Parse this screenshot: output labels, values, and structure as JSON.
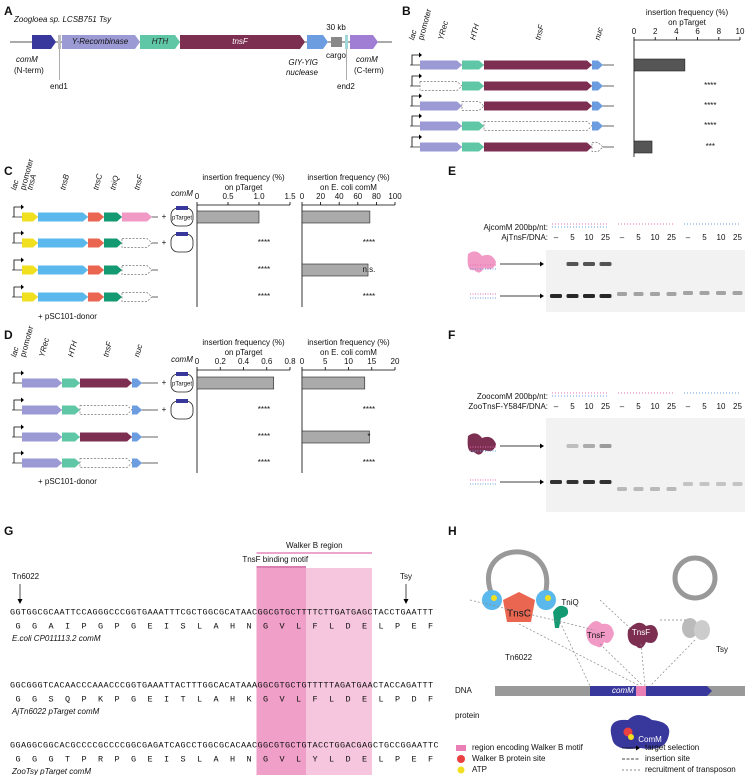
{
  "panel_labels": [
    "A",
    "B",
    "C",
    "D",
    "E",
    "F",
    "G",
    "H"
  ],
  "panel_a": {
    "title": "Zoogloea sp. LCSB751 Tsy",
    "genes": [
      "Y-Recombinase",
      "HTH",
      "tnsF"
    ],
    "cargo_size": "30 kb",
    "cargo": "cargo",
    "nuclease": [
      "GIY-YIG",
      "nuclease"
    ],
    "comm_n": [
      "comM",
      "(N-term)"
    ],
    "end1": "end1",
    "end2": "end2",
    "comm_c": [
      "comM",
      "(C-term)"
    ]
  },
  "panel_b": {
    "promoter": [
      "lac",
      "promoter"
    ],
    "genes": [
      "YRec",
      "HTH",
      "tnsF",
      "nuc"
    ]
  },
  "panel_c": {
    "promoter": [
      "lac",
      "promoter"
    ],
    "genes": [
      "tnsA",
      "tnsB",
      "tnsC",
      "tniQ",
      "tnsF"
    ],
    "plus": "+",
    "target": "comM",
    "plasmid": "pTarget",
    "donor": "+ pSC101-donor"
  },
  "panel_d": {
    "promoter": [
      "lac",
      "promoter"
    ],
    "genes": [
      "YRec",
      "HTH",
      "tnsF",
      "nuc"
    ],
    "plus": "+",
    "target": "comM",
    "plasmid": "pTarget",
    "donor": "+ pSC101-donor"
  },
  "panel_e": {
    "probe": "AjcomM 200bp/nt:",
    "ratio": "AjTnsF/DNA:",
    "lanes": [
      "–",
      "5",
      "10",
      "25"
    ]
  },
  "panel_f": {
    "probe": "ZoocomM 200bp/nt:",
    "ratio": "ZooTnsF-Y584F/DNA:",
    "lanes": [
      "–",
      "5",
      "10",
      "25"
    ]
  },
  "panel_g": {
    "region": "Walker B region",
    "motif": "TnsF binding motif",
    "site_left": "Tn6022",
    "site_right": "Tsy",
    "rows": [
      {
        "dna": "GGTGGCGCAATTCCAGGGCCCGGTGAAATTTCGCTGGCGCATAACGGCGTGCTTTTCTTGATGAGCTACCTGAATTT",
        "protein": "G G A I P G P G E I S L A H N G V L F L D E L P E F",
        "name": "E.coli CP011113.2 comM"
      },
      {
        "dna": "GGCGGGTCACAACCCAAACCCGGTGAAATTACTTTGGCACATAAAGGCGTGCTGTTTTTAGATGAACTACCAGATTT",
        "protein": "G G S Q P K P G E I T L A H K G V L F L D E L P D F",
        "name": "AjTn6022 pTarget comM"
      },
      {
        "dna": "GGAGGCGGCACGCCCCGCCCCGGCGAGATCAGCCTGGCGCACAACGGCGTGCTGTACCTGGACGAGCTGCCGGAATTC",
        "protein": "G G G T P R P G E I S L A H N G V L Y L D E L P E F",
        "name": "ZooTsy pTarget comM"
      }
    ]
  },
  "panel_h": {
    "proteins": [
      "TnsC",
      "TniQ",
      "TnsF",
      "TnsF",
      "ComM"
    ],
    "systems": [
      "Tn6022",
      "Tsy"
    ],
    "dna": "DNA",
    "gene": "comM",
    "protein": "protein",
    "legend": [
      "region encoding Walker B motif",
      "Walker B protein site",
      "ATP",
      "target selection",
      "insertion site",
      "recruitment of transposon"
    ]
  },
  "chart_data": [
    {
      "type": "bar",
      "orientation": "horizontal",
      "title": [
        "insertion frequency (%)",
        "on pTarget"
      ],
      "xlim": [
        0,
        10
      ],
      "xticks": [
        0,
        2,
        4,
        6,
        8,
        10
      ],
      "values": [
        4.8,
        0,
        0,
        0,
        1.7
      ],
      "significance": [
        null,
        "****",
        "****",
        "****",
        "***"
      ],
      "color": "#555555"
    },
    {
      "type": "bar",
      "orientation": "horizontal",
      "title": [
        "insertion frequency (%)",
        "on pTarget"
      ],
      "xlim": [
        0,
        1.5
      ],
      "xticks": [
        0,
        0.5,
        {
          "value": 1,
          "label": "1.0"
        },
        1.5
      ],
      "values": [
        1.0,
        0,
        0,
        0
      ],
      "significance": [
        null,
        "****",
        "****",
        "****"
      ],
      "color": "#aaaaaa"
    },
    {
      "type": "bar",
      "orientation": "horizontal",
      "title": [
        "insertion frequency (%)",
        "on E. coli comM"
      ],
      "xlim": [
        0,
        100
      ],
      "xticks": [
        0,
        20,
        40,
        60,
        80,
        100
      ],
      "values": [
        73,
        0,
        71,
        0
      ],
      "significance": [
        null,
        "****",
        "n.s.",
        "****"
      ],
      "color": "#aaaaaa"
    },
    {
      "type": "bar",
      "orientation": "horizontal",
      "title": [
        "insertion frequency (%)",
        "on pTarget"
      ],
      "xlim": [
        0,
        0.8
      ],
      "xticks": [
        0,
        0.2,
        0.4,
        0.6,
        0.8
      ],
      "values": [
        0.66,
        0,
        0,
        0
      ],
      "significance": [
        null,
        "****",
        "****",
        "****"
      ],
      "color": "#aaaaaa"
    },
    {
      "type": "bar",
      "orientation": "horizontal",
      "title": [
        "insertion frequency (%)",
        "on E. coli comM"
      ],
      "xlim": [
        0,
        20
      ],
      "xticks": [
        0,
        5,
        10,
        15,
        20
      ],
      "values": [
        13.5,
        0,
        14.5,
        0
      ],
      "significance": [
        null,
        "****",
        "*",
        "****"
      ],
      "color": "#aaaaaa"
    }
  ]
}
